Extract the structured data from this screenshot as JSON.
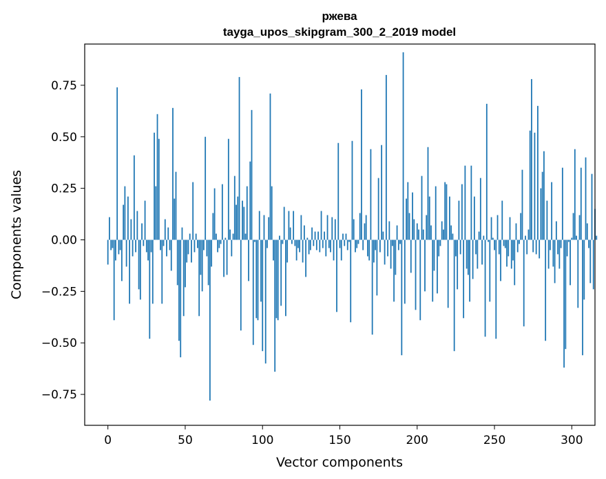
{
  "chart_data": {
    "type": "bar",
    "title": "ржева",
    "subtitle": "tayga_upos_skipgram_300_2_2019 model",
    "xlabel": "Vector components",
    "ylabel": "Components values",
    "xlim": [
      -15,
      315
    ],
    "ylim": [
      -0.9,
      0.95
    ],
    "xticks": [
      0,
      50,
      100,
      150,
      200,
      250,
      300
    ],
    "yticks": [
      -0.75,
      -0.5,
      -0.25,
      0.0,
      0.25,
      0.5,
      0.75
    ],
    "ytick_labels": [
      "−0.75",
      "−0.50",
      "−0.25",
      "0.00",
      "0.25",
      "0.50",
      "0.75"
    ],
    "bar_color": "#1f77b4",
    "grid": false,
    "values": [
      -0.12,
      0.11,
      -0.05,
      -0.04,
      -0.39,
      -0.1,
      0.74,
      -0.07,
      -0.05,
      -0.2,
      0.17,
      0.26,
      -0.13,
      0.21,
      -0.31,
      0.1,
      -0.08,
      0.41,
      -0.06,
      0.14,
      -0.24,
      -0.29,
      0.08,
      -0.03,
      0.19,
      -0.06,
      -0.1,
      -0.48,
      -0.06,
      -0.31,
      0.52,
      0.26,
      0.61,
      0.49,
      -0.05,
      -0.31,
      -0.03,
      0.1,
      -0.08,
      0.06,
      -0.05,
      -0.15,
      0.64,
      0.2,
      0.33,
      -0.22,
      -0.49,
      -0.57,
      0.06,
      -0.37,
      -0.23,
      -0.11,
      -0.07,
      0.03,
      -0.11,
      0.28,
      -0.06,
      0.03,
      -0.04,
      -0.37,
      -0.17,
      -0.25,
      -0.05,
      0.5,
      -0.08,
      -0.22,
      -0.78,
      -0.13,
      0.13,
      0.25,
      0.03,
      -0.06,
      -0.04,
      -0.02,
      0.27,
      -0.18,
      0.01,
      -0.17,
      0.49,
      0.05,
      -0.08,
      0.03,
      0.31,
      0.17,
      0.21,
      0.79,
      -0.44,
      0.19,
      0.16,
      0.03,
      0.26,
      -0.2,
      0.38,
      0.63,
      -0.51,
      -0.01,
      -0.38,
      -0.39,
      0.14,
      -0.3,
      -0.54,
      0.12,
      -0.6,
      -0.04,
      0.11,
      0.71,
      0.26,
      -0.1,
      -0.64,
      -0.38,
      -0.39,
      0.02,
      -0.32,
      -0.02,
      0.16,
      -0.37,
      -0.11,
      0.14,
      0.06,
      -0.02,
      0.14,
      -0.03,
      -0.1,
      -0.04,
      -0.06,
      0.12,
      -0.11,
      0.07,
      -0.18,
      0.01,
      -0.07,
      -0.05,
      0.06,
      -0.03,
      0.04,
      -0.05,
      0.04,
      -0.06,
      0.14,
      -0.04,
      0.04,
      -0.08,
      0.12,
      -0.04,
      -0.06,
      0.11,
      -0.1,
      0.1,
      -0.35,
      0.47,
      -0.04,
      -0.1,
      0.03,
      -0.03,
      0.03,
      -0.05,
      -0.01,
      -0.4,
      0.48,
      0.1,
      -0.06,
      -0.04,
      -0.02,
      0.13,
      0.73,
      -0.05,
      0.08,
      0.12,
      -0.08,
      -0.1,
      0.44,
      -0.46,
      -0.11,
      -0.05,
      -0.27,
      0.3,
      -0.06,
      0.46,
      0.04,
      -0.12,
      0.8,
      -0.08,
      0.09,
      -0.14,
      -0.03,
      -0.3,
      -0.17,
      0.07,
      -0.05,
      -0.02,
      -0.56,
      0.91,
      -0.31,
      0.2,
      0.28,
      0.13,
      -0.16,
      0.23,
      0.1,
      -0.34,
      0.08,
      0.05,
      -0.39,
      0.31,
      0.05,
      -0.25,
      0.12,
      0.45,
      0.21,
      0.07,
      -0.3,
      -0.15,
      0.26,
      -0.26,
      -0.08,
      -0.03,
      0.09,
      0.05,
      0.28,
      0.27,
      -0.33,
      0.21,
      0.07,
      0.03,
      -0.54,
      -0.08,
      -0.24,
      0.19,
      -0.07,
      0.27,
      -0.38,
      0.36,
      -0.14,
      -0.17,
      -0.3,
      0.36,
      -0.19,
      0.21,
      -0.07,
      -0.14,
      0.04,
      0.3,
      -0.12,
      0.02,
      -0.47,
      0.66,
      -0.01,
      -0.3,
      0.11,
      0.01,
      -0.05,
      -0.48,
      0.12,
      -0.07,
      -0.2,
      0.19,
      -0.03,
      -0.04,
      -0.13,
      -0.08,
      0.11,
      -0.14,
      -0.1,
      -0.22,
      0.08,
      -0.06,
      -0.02,
      0.13,
      0.34,
      -0.42,
      0.02,
      -0.07,
      0.05,
      0.53,
      0.78,
      -0.06,
      0.52,
      -0.07,
      0.65,
      -0.09,
      0.25,
      0.33,
      0.43,
      -0.49,
      0.19,
      -0.14,
      -0.05,
      0.28,
      -0.13,
      -0.21,
      0.09,
      -0.07,
      -0.14,
      -0.04,
      0.35,
      -0.62,
      -0.53,
      -0.08,
      -0.01,
      -0.22,
      0.01,
      0.13,
      0.44,
      0.02,
      -0.33,
      0.12,
      0.35,
      -0.56,
      -0.29,
      0.4,
      0.08,
      -0.04,
      -0.21,
      0.32,
      -0.24,
      0.15,
      0.02
    ]
  }
}
